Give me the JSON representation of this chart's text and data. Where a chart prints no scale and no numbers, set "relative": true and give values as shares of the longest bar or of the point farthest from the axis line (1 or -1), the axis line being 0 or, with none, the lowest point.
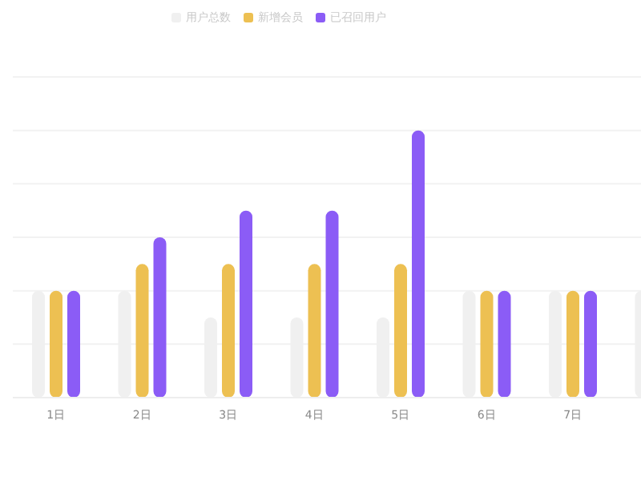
{
  "chart_data": {
    "type": "bar",
    "relative": true,
    "grid": "y",
    "legend": "top",
    "categories": [
      "1日",
      "2日",
      "3日",
      "4日",
      "5日",
      "6日",
      "7日",
      null
    ],
    "series": [
      {
        "name": "用户总数",
        "color": "#f0f0f0",
        "values": [
          0.4,
          0.4,
          0.3,
          0.3,
          0.3,
          0.4,
          0.4,
          0.4
        ]
      },
      {
        "name": "新增会员",
        "color": "#edc052",
        "values": [
          0.4,
          0.5,
          0.5,
          0.5,
          0.5,
          0.4,
          0.4,
          null
        ]
      },
      {
        "name": "已召回用户",
        "color": "#8b5cf6",
        "values": [
          0.4,
          0.6,
          0.7,
          0.7,
          1,
          0.4,
          0.4,
          null
        ]
      }
    ]
  }
}
